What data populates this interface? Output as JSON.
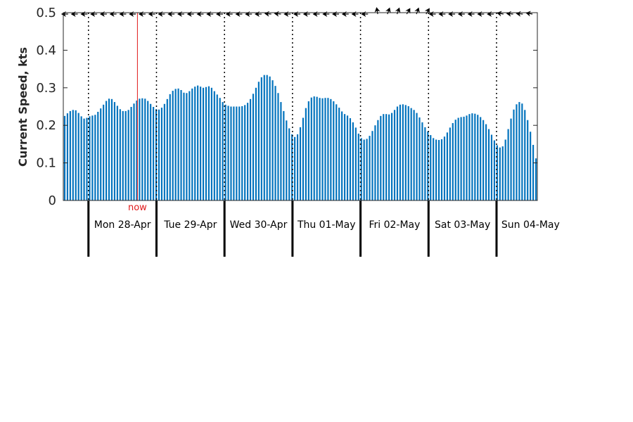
{
  "chart_data": {
    "type": "bar",
    "ylabel": "Current Speed, kts",
    "ylim": [
      0,
      0.5
    ],
    "yticks": [
      "0",
      "0.1",
      "0.2",
      "0.3",
      "0.4",
      "0.5"
    ],
    "grid": false,
    "bar_color": "#0072bd",
    "now_color": "#e0191a",
    "now_label": "now",
    "now_day_index": 0.72,
    "days": [
      "Mon 28-Apr",
      "Tue 29-Apr",
      "Wed 30-Apr",
      "Thu 01-May",
      "Fri 02-May",
      "Sat 03-May",
      "Sun 04-May"
    ],
    "x_start_day": -0.37,
    "x_end_day": 6.6,
    "samples_per_day": 24,
    "series": [
      {
        "values": [
          0.225,
          0.232,
          0.238,
          0.241,
          0.24,
          0.233,
          0.224,
          0.218,
          0.22,
          0.224,
          0.226,
          0.228,
          0.236,
          0.245,
          0.255,
          0.265,
          0.271,
          0.27,
          0.262,
          0.252,
          0.243,
          0.238,
          0.238,
          0.241,
          0.249,
          0.258,
          0.266,
          0.271,
          0.272,
          0.271,
          0.265,
          0.257,
          0.249,
          0.243,
          0.242,
          0.247,
          0.257,
          0.27,
          0.283,
          0.292,
          0.297,
          0.298,
          0.294,
          0.287,
          0.286,
          0.291,
          0.298,
          0.303,
          0.306,
          0.303,
          0.3,
          0.302,
          0.304,
          0.3,
          0.291,
          0.282,
          0.273,
          0.262,
          0.255,
          0.252,
          0.25,
          0.25,
          0.25,
          0.25,
          0.251,
          0.254,
          0.26,
          0.27,
          0.284,
          0.3,
          0.316,
          0.328,
          0.334,
          0.334,
          0.33,
          0.32,
          0.305,
          0.286,
          0.262,
          0.238,
          0.213,
          0.192,
          0.176,
          0.169,
          0.176,
          0.195,
          0.22,
          0.246,
          0.264,
          0.274,
          0.277,
          0.276,
          0.273,
          0.272,
          0.273,
          0.273,
          0.27,
          0.264,
          0.256,
          0.247,
          0.237,
          0.23,
          0.226,
          0.219,
          0.208,
          0.194,
          0.178,
          0.166,
          0.162,
          0.164,
          0.172,
          0.185,
          0.2,
          0.214,
          0.225,
          0.23,
          0.23,
          0.229,
          0.233,
          0.241,
          0.25,
          0.255,
          0.256,
          0.254,
          0.251,
          0.246,
          0.241,
          0.233,
          0.221,
          0.208,
          0.195,
          0.184,
          0.174,
          0.166,
          0.162,
          0.161,
          0.163,
          0.17,
          0.181,
          0.194,
          0.206,
          0.215,
          0.22,
          0.222,
          0.223,
          0.226,
          0.23,
          0.232,
          0.231,
          0.228,
          0.222,
          0.214,
          0.203,
          0.19,
          0.175,
          0.16,
          0.147,
          0.141,
          0.144,
          0.162,
          0.19,
          0.218,
          0.242,
          0.256,
          0.262,
          0.258,
          0.241,
          0.214,
          0.183,
          0.148,
          0.112
        ]
      }
    ],
    "arrows": {
      "color": "#000000",
      "angles_deg": [
        -90,
        -90,
        -90,
        -90,
        -90,
        -90,
        -90,
        -90,
        -90,
        -90,
        -90,
        -90,
        -90,
        -90,
        -90,
        -90,
        -90,
        -90,
        -90,
        -90,
        -90,
        -85,
        -85,
        -90,
        -90,
        -90,
        -90,
        -90,
        -90,
        -90,
        -90,
        -90,
        -10,
        20,
        20,
        30,
        20,
        30,
        -90,
        -90,
        -90,
        -90,
        -90,
        -90,
        -90,
        -80,
        -85,
        -85,
        -80
      ]
    }
  }
}
